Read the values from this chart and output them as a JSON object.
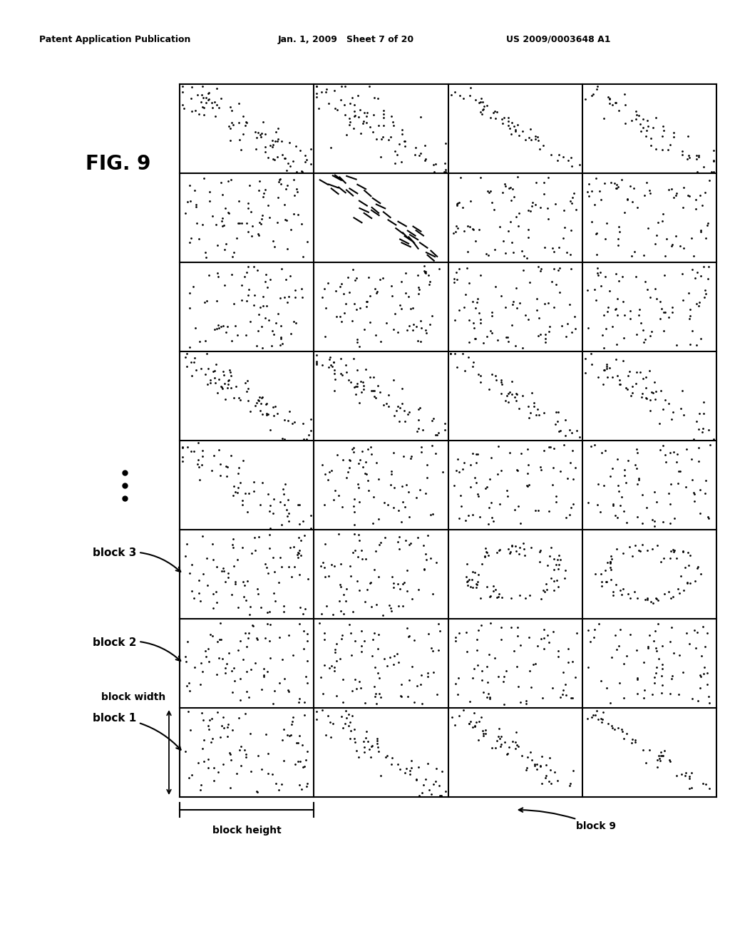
{
  "title_left": "Patent Application Publication",
  "title_center": "Jan. 1, 2009   Sheet 7 of 20",
  "title_right": "US 2009/0003648 A1",
  "fig_label": "FIG. 9",
  "grid_rows": 8,
  "grid_cols": 4,
  "bg_color": "#ffffff",
  "line_color": "#000000",
  "dot_color": "#000000",
  "annotations": {
    "block1_label": "block 1",
    "block2_label": "block 2",
    "block3_label": "block 3",
    "block_width_label": "block width",
    "block_height_label": "block height",
    "block9_label": "block 9"
  }
}
